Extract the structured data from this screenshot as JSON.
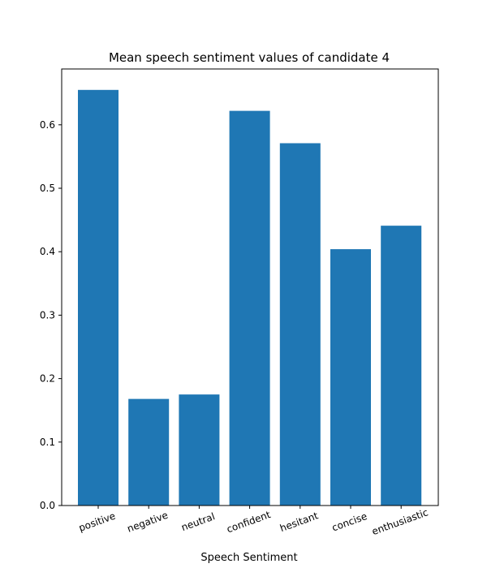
{
  "chart_data": {
    "type": "bar",
    "title": "Mean speech sentiment values of candidate 4",
    "xlabel": "Speech Sentiment",
    "ylabel": "",
    "categories": [
      "positive",
      "negative",
      "neutral",
      "confident",
      "hesitant",
      "concise",
      "enthusiastic"
    ],
    "values": [
      0.655,
      0.168,
      0.175,
      0.622,
      0.571,
      0.404,
      0.441
    ],
    "ylim": [
      0,
      0.688
    ],
    "yticks": [
      "0.0",
      "0.1",
      "0.2",
      "0.3",
      "0.4",
      "0.5",
      "0.6"
    ],
    "bar_color": "#1f77b4",
    "grid": false,
    "legend": "none"
  }
}
